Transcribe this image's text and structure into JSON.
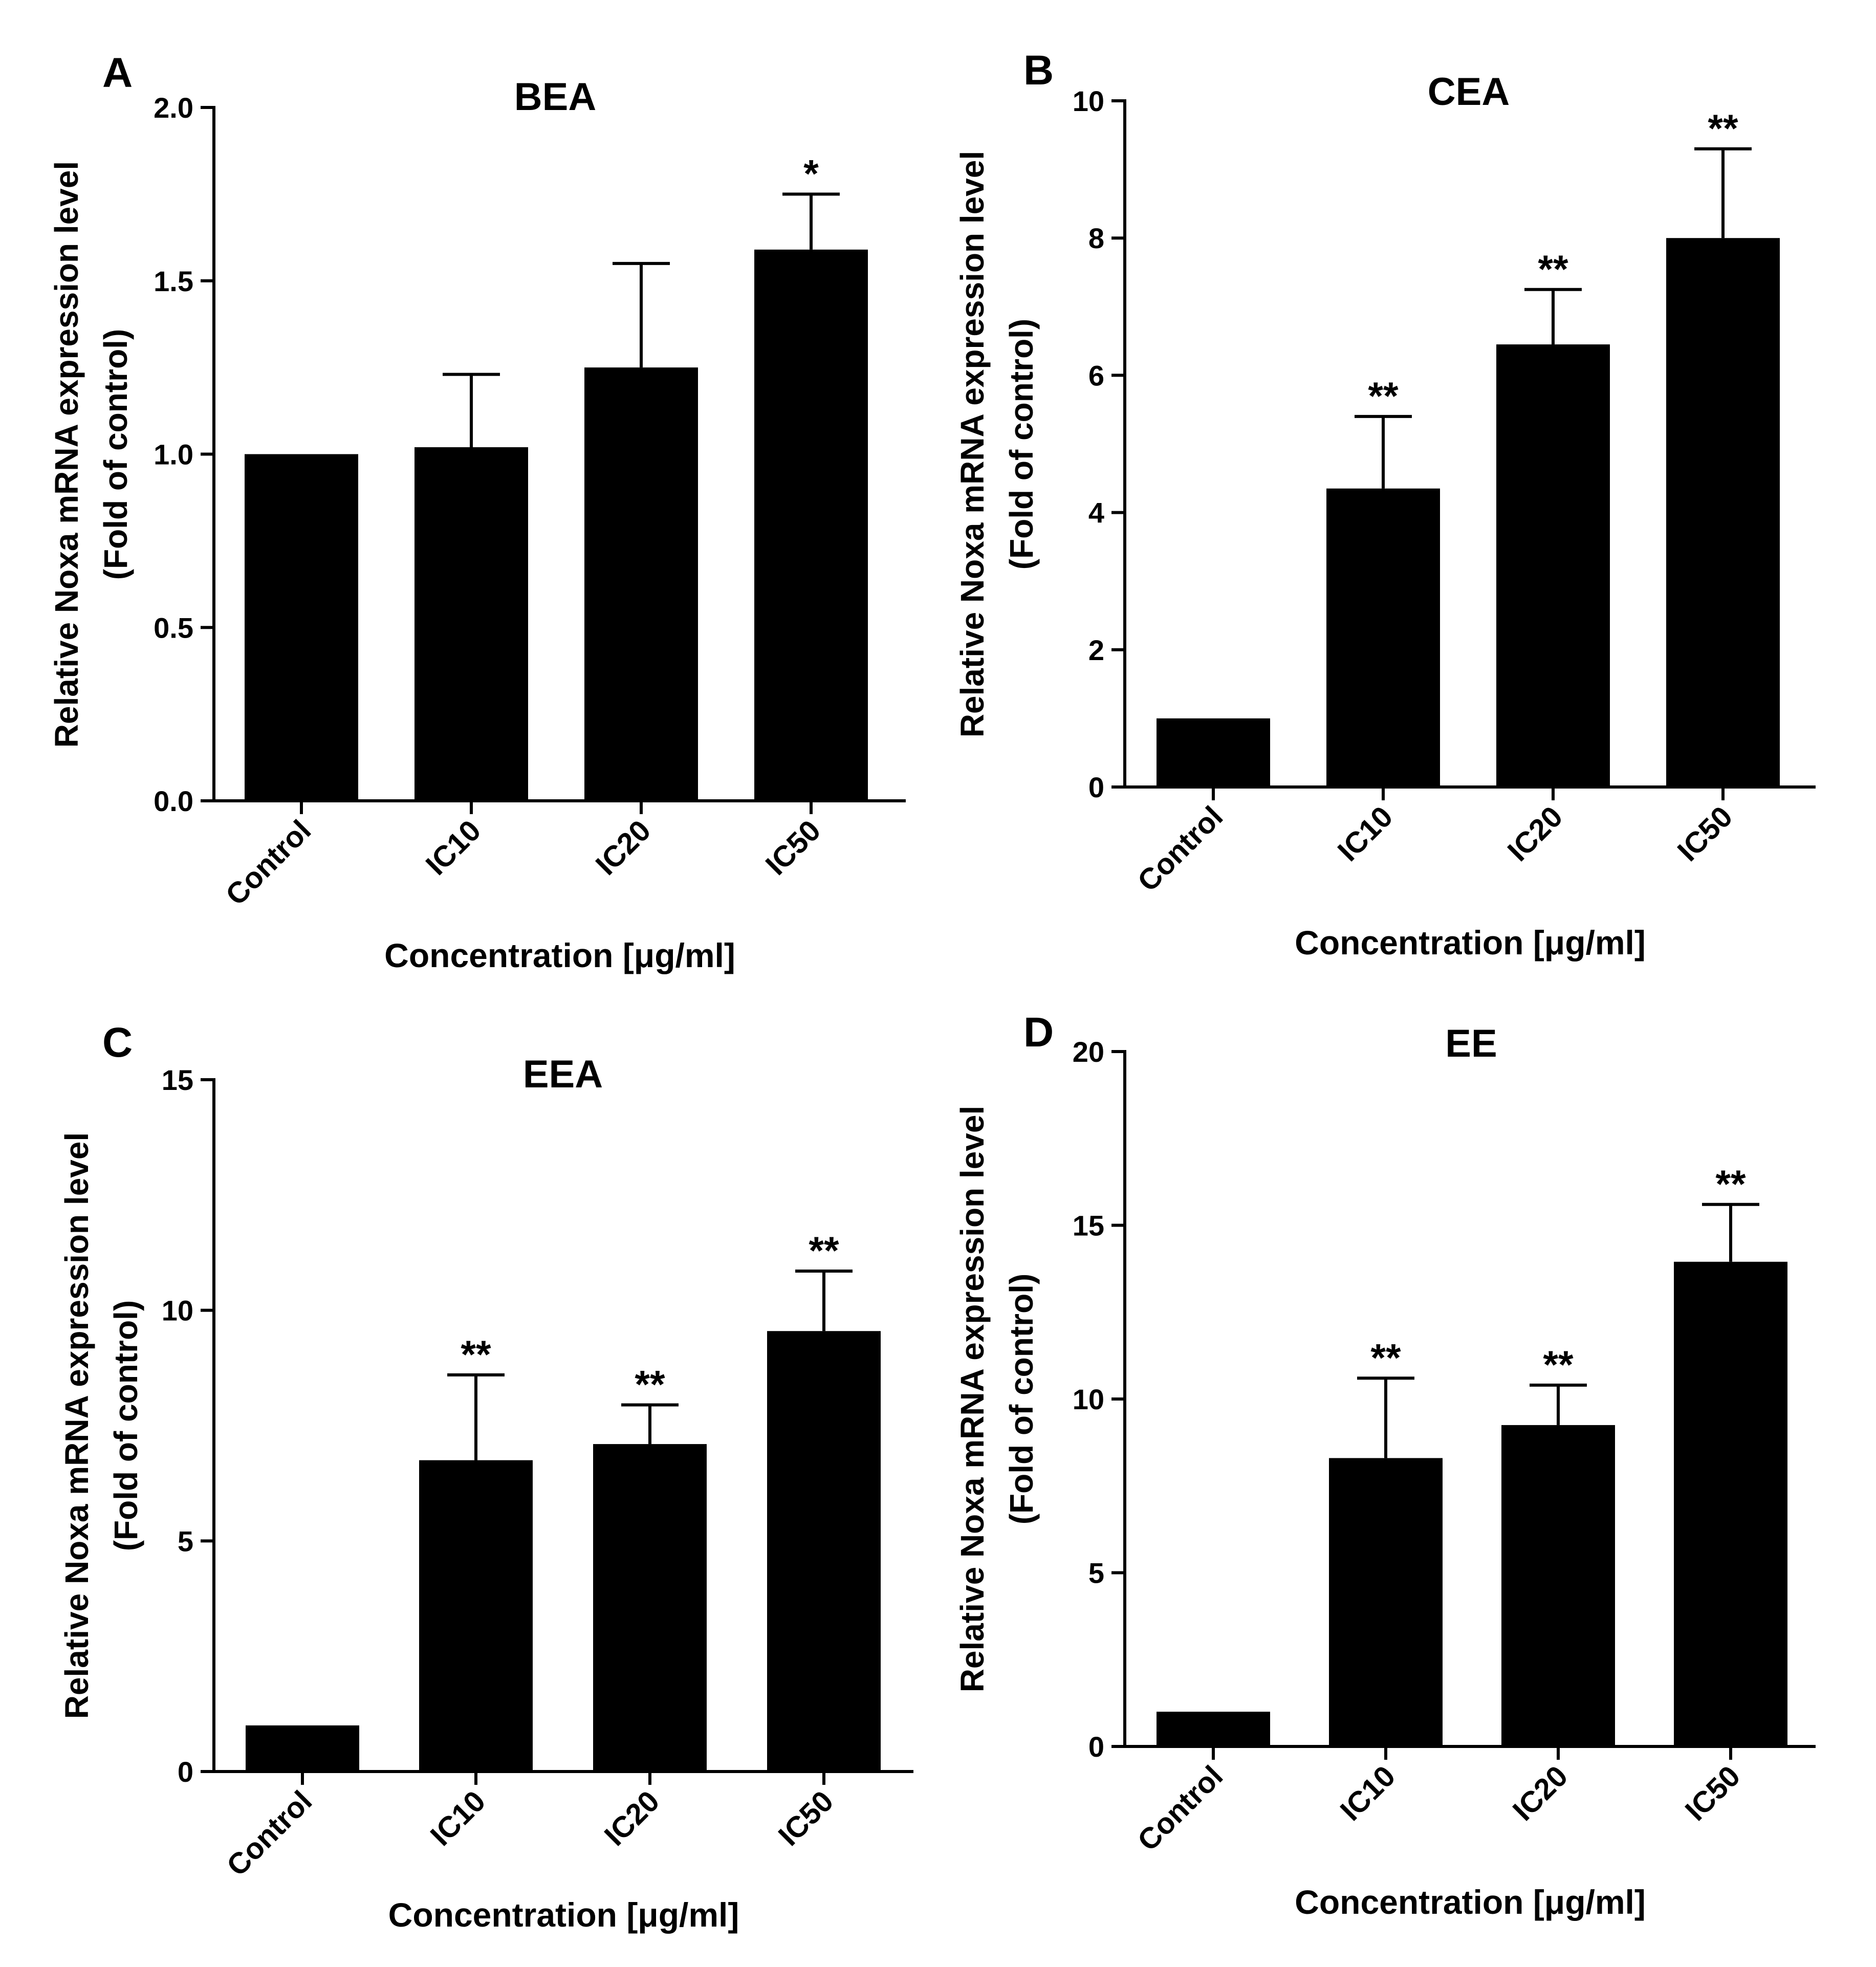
{
  "figure": {
    "bar_color": "#000000",
    "axis_color": "#000000"
  },
  "chart_data": [
    {
      "type": "bar",
      "panel_label": "A",
      "title": "BEA",
      "categories": [
        "Control",
        "IC10",
        "IC20",
        "IC50"
      ],
      "values": [
        1.0,
        1.02,
        1.25,
        1.59
      ],
      "error_upper": [
        1.0,
        1.23,
        1.55,
        1.75
      ],
      "significance": [
        "",
        "",
        "",
        "*"
      ],
      "ylabel": "Relative Noxa mRNA expression level",
      "ylabel2": "(Fold of control)",
      "xlabel": "Concentration [μg/ml]",
      "ylim": [
        0,
        2.0
      ],
      "yticks": [
        0.0,
        0.5,
        1.0,
        1.5,
        2.0
      ],
      "ytick_labels": [
        "0.0",
        "0.5",
        "1.0",
        "1.5",
        "2.0"
      ]
    },
    {
      "type": "bar",
      "panel_label": "B",
      "title": "CEA",
      "categories": [
        "Control",
        "IC10",
        "IC20",
        "IC50"
      ],
      "values": [
        1.0,
        4.35,
        6.45,
        8.0
      ],
      "error_upper": [
        1.0,
        5.4,
        7.25,
        9.3
      ],
      "significance": [
        "",
        "**",
        "**",
        "**"
      ],
      "ylabel": "Relative Noxa mRNA expression level",
      "ylabel2": "(Fold of control)",
      "xlabel": "Concentration [μg/ml]",
      "ylim": [
        0,
        10
      ],
      "yticks": [
        0,
        2,
        4,
        6,
        8,
        10
      ],
      "ytick_labels": [
        "0",
        "2",
        "4",
        "6",
        "8",
        "10"
      ]
    },
    {
      "type": "bar",
      "panel_label": "C",
      "title": "EEA",
      "categories": [
        "Control",
        "IC10",
        "IC20",
        "IC50"
      ],
      "values": [
        1.0,
        6.75,
        7.1,
        9.55
      ],
      "error_upper": [
        1.0,
        8.6,
        7.95,
        10.85
      ],
      "significance": [
        "",
        "**",
        "**",
        "**"
      ],
      "ylabel": "Relative Noxa mRNA expression level",
      "ylabel2": "(Fold of control)",
      "xlabel": "Concentration [μg/ml]",
      "ylim": [
        0,
        15
      ],
      "yticks": [
        0,
        5,
        10,
        15
      ],
      "ytick_labels": [
        "0",
        "5",
        "10",
        "15"
      ]
    },
    {
      "type": "bar",
      "panel_label": "D",
      "title": "EE",
      "categories": [
        "Control",
        "IC10",
        "IC20",
        "IC50"
      ],
      "values": [
        1.0,
        8.3,
        9.25,
        13.95
      ],
      "error_upper": [
        1.0,
        10.6,
        10.4,
        15.6
      ],
      "significance": [
        "",
        "**",
        "**",
        "**"
      ],
      "ylabel": "Relative Noxa mRNA expression level",
      "ylabel2": "(Fold of control)",
      "xlabel": "Concentration [μg/ml]",
      "ylim": [
        0,
        20
      ],
      "yticks": [
        0,
        5,
        10,
        15,
        20
      ],
      "ytick_labels": [
        "0",
        "5",
        "10",
        "15",
        "20"
      ]
    }
  ]
}
